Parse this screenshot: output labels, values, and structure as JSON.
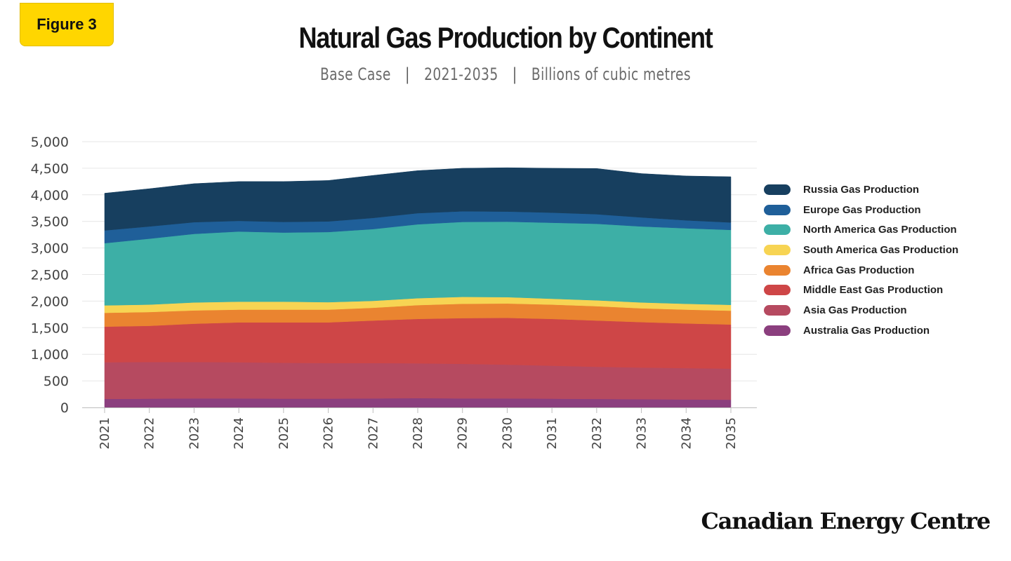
{
  "badge": {
    "label": "Figure 3"
  },
  "header": {
    "title": "Natural Gas Production by Continent",
    "subtitle_parts": [
      "Base Case",
      "2021-2035",
      "Billions of cubic metres"
    ],
    "separator": "|"
  },
  "brand": {
    "name": "Canadian Energy Centre"
  },
  "chart_data": {
    "type": "area",
    "stacked": true,
    "title": "Natural Gas Production by Continent",
    "subtitle": "Base Case | 2021-2035 | Billions of cubic metres",
    "xlabel": "",
    "ylabel": "",
    "x": [
      "2021",
      "2022",
      "2023",
      "2024",
      "2025",
      "2026",
      "2027",
      "2028",
      "2029",
      "2030",
      "2031",
      "2032",
      "2033",
      "2034",
      "2035"
    ],
    "ylim": [
      0,
      5000
    ],
    "y_ticks": [
      0,
      500,
      1000,
      1500,
      2000,
      2500,
      3000,
      3500,
      4000,
      4500,
      5000
    ],
    "y_tick_labels": [
      "0",
      "500",
      "1,000",
      "1,500",
      "2,000",
      "2,500",
      "3,000",
      "3,500",
      "4,000",
      "4,500",
      "5,000"
    ],
    "grid": true,
    "legend_position": "right",
    "series": [
      {
        "name": "Australia Gas Production",
        "color": "#8B3F7E",
        "values": [
          160,
          165,
          170,
          170,
          165,
          165,
          170,
          175,
          170,
          170,
          165,
          160,
          155,
          150,
          145
        ]
      },
      {
        "name": "Asia Gas Production",
        "color": "#B64A60",
        "values": [
          690,
          690,
          685,
          680,
          675,
          670,
          665,
          655,
          650,
          635,
          620,
          605,
          595,
          590,
          585
        ]
      },
      {
        "name": "Middle East Gas Production",
        "color": "#CE4647",
        "values": [
          670,
          680,
          720,
          750,
          760,
          765,
          800,
          835,
          860,
          880,
          880,
          870,
          855,
          840,
          830
        ]
      },
      {
        "name": "Africa Gas Production",
        "color": "#EA8430",
        "values": [
          260,
          260,
          250,
          240,
          240,
          240,
          240,
          260,
          270,
          270,
          270,
          270,
          260,
          260,
          260
        ]
      },
      {
        "name": "South America Gas Production",
        "color": "#F7D453",
        "values": [
          140,
          140,
          150,
          150,
          150,
          140,
          130,
          130,
          130,
          120,
          110,
          110,
          110,
          110,
          110
        ]
      },
      {
        "name": "North America Gas Production",
        "color": "#3DAFA6",
        "values": [
          1170,
          1240,
          1290,
          1320,
          1300,
          1320,
          1350,
          1390,
          1410,
          1420,
          1430,
          1440,
          1430,
          1420,
          1410
        ]
      },
      {
        "name": "Europe Gas Production",
        "color": "#1F5F99",
        "values": [
          240,
          230,
          220,
          200,
          200,
          200,
          210,
          210,
          200,
          190,
          190,
          180,
          170,
          150,
          140
        ]
      },
      {
        "name": "Russia Gas Production",
        "color": "#173F5F",
        "values": [
          700,
          710,
          725,
          740,
          760,
          770,
          800,
          800,
          810,
          825,
          835,
          860,
          825,
          835,
          860
        ]
      }
    ]
  }
}
